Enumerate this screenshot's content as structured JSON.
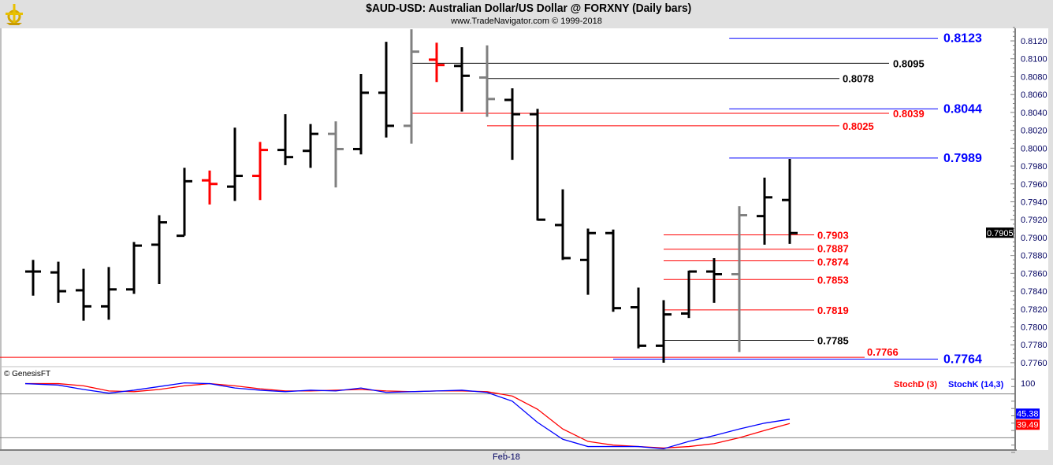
{
  "header": {
    "title": "$AUD-USD:  Australian Dollar/US Dollar @ FORXNY  (Daily bars)",
    "subtitle": "www.TradeNavigator.com © 1999-2018",
    "logo_icon": "golden-sextant-logo"
  },
  "chart_data": [
    {
      "type": "ohlc-bar",
      "symbol": "$AUD-USD",
      "ylim": [
        0.7748,
        0.8132
      ],
      "y_ticks": [
        "0.8120",
        "0.8100",
        "0.8080",
        "0.8060",
        "0.8040",
        "0.8020",
        "0.8000",
        "0.7980",
        "0.7960",
        "0.7940",
        "0.7920",
        "0.7900",
        "0.7880",
        "0.7860",
        "0.7840",
        "0.7820",
        "0.7800",
        "0.7780",
        "0.7760"
      ],
      "x_tick_label": "Feb-18",
      "x_tick_bar": 19,
      "last_price": "0.7905",
      "bar_colors": {
        "black": "#000000",
        "red": "#ff0000",
        "gray": "#808080"
      },
      "bars": [
        {
          "o": 0.7862,
          "h": 0.7875,
          "l": 0.7835,
          "c": 0.7862,
          "color": "black"
        },
        {
          "o": 0.7861,
          "h": 0.7873,
          "l": 0.7827,
          "c": 0.784,
          "color": "black"
        },
        {
          "o": 0.7841,
          "h": 0.7865,
          "l": 0.7807,
          "c": 0.7823,
          "color": "black"
        },
        {
          "o": 0.7823,
          "h": 0.7867,
          "l": 0.7808,
          "c": 0.7842,
          "color": "black"
        },
        {
          "o": 0.7842,
          "h": 0.7895,
          "l": 0.7837,
          "c": 0.7891,
          "color": "black"
        },
        {
          "o": 0.7892,
          "h": 0.7925,
          "l": 0.7848,
          "c": 0.7917,
          "color": "black"
        },
        {
          "o": 0.7902,
          "h": 0.7978,
          "l": 0.7902,
          "c": 0.7963,
          "color": "black"
        },
        {
          "o": 0.7964,
          "h": 0.7975,
          "l": 0.7937,
          "c": 0.796,
          "color": "red"
        },
        {
          "o": 0.7957,
          "h": 0.8023,
          "l": 0.7941,
          "c": 0.7969,
          "color": "black"
        },
        {
          "o": 0.7969,
          "h": 0.8007,
          "l": 0.7942,
          "c": 0.7998,
          "color": "red"
        },
        {
          "o": 0.7998,
          "h": 0.8038,
          "l": 0.7981,
          "c": 0.799,
          "color": "black"
        },
        {
          "o": 0.7997,
          "h": 0.8027,
          "l": 0.7978,
          "c": 0.8016,
          "color": "black"
        },
        {
          "o": 0.8016,
          "h": 0.803,
          "l": 0.7956,
          "c": 0.7999,
          "color": "gray"
        },
        {
          "o": 0.7999,
          "h": 0.8083,
          "l": 0.7993,
          "c": 0.8062,
          "color": "black"
        },
        {
          "o": 0.8062,
          "h": 0.8119,
          "l": 0.8012,
          "c": 0.8025,
          "color": "black"
        },
        {
          "o": 0.8025,
          "h": 0.8133,
          "l": 0.8005,
          "c": 0.8108,
          "color": "gray"
        },
        {
          "o": 0.8099,
          "h": 0.8118,
          "l": 0.8074,
          "c": 0.8093,
          "color": "red"
        },
        {
          "o": 0.8092,
          "h": 0.8113,
          "l": 0.8041,
          "c": 0.8081,
          "color": "black"
        },
        {
          "o": 0.8079,
          "h": 0.8115,
          "l": 0.8035,
          "c": 0.8055,
          "color": "gray"
        },
        {
          "o": 0.8054,
          "h": 0.8067,
          "l": 0.7987,
          "c": 0.8038,
          "color": "black"
        },
        {
          "o": 0.8038,
          "h": 0.8044,
          "l": 0.7919,
          "c": 0.792,
          "color": "black"
        },
        {
          "o": 0.7914,
          "h": 0.7954,
          "l": 0.7875,
          "c": 0.7877,
          "color": "black"
        },
        {
          "o": 0.7875,
          "h": 0.791,
          "l": 0.7836,
          "c": 0.7905,
          "color": "black"
        },
        {
          "o": 0.7905,
          "h": 0.7909,
          "l": 0.7817,
          "c": 0.7821,
          "color": "black"
        },
        {
          "o": 0.7822,
          "h": 0.7844,
          "l": 0.7776,
          "c": 0.7779,
          "color": "black"
        },
        {
          "o": 0.7779,
          "h": 0.783,
          "l": 0.776,
          "c": 0.7814,
          "color": "black"
        },
        {
          "o": 0.7815,
          "h": 0.7863,
          "l": 0.781,
          "c": 0.7862,
          "color": "black"
        },
        {
          "o": 0.7862,
          "h": 0.7877,
          "l": 0.7827,
          "c": 0.7859,
          "color": "black"
        },
        {
          "o": 0.7859,
          "h": 0.7935,
          "l": 0.7772,
          "c": 0.7925,
          "color": "gray"
        },
        {
          "o": 0.7924,
          "h": 0.7967,
          "l": 0.7892,
          "c": 0.7945,
          "color": "black"
        },
        {
          "o": 0.7942,
          "h": 0.7988,
          "l": 0.7893,
          "c": 0.7905,
          "color": "black"
        }
      ],
      "levels": [
        {
          "price": 0.8123,
          "label": "0.8123",
          "color": "#0000ff",
          "from_bar": 27.6
        },
        {
          "price": 0.8095,
          "label": "0.8095",
          "color": "#000000",
          "from_bar": 15
        },
        {
          "price": 0.8078,
          "label": "0.8078",
          "color": "#000000",
          "from_bar": 18
        },
        {
          "price": 0.8044,
          "label": "0.8044",
          "color": "#0000ff",
          "from_bar": 27.6
        },
        {
          "price": 0.8039,
          "label": "0.8039",
          "color": "#ff0000",
          "from_bar": 15
        },
        {
          "price": 0.8025,
          "label": "0.8025",
          "color": "#ff0000",
          "from_bar": 18
        },
        {
          "price": 0.7989,
          "label": "0.7989",
          "color": "#0000ff",
          "from_bar": 27.6
        },
        {
          "price": 0.7903,
          "label": "0.7903",
          "color": "#ff0000",
          "from_bar": 25
        },
        {
          "price": 0.7887,
          "label": "0.7887",
          "color": "#ff0000",
          "from_bar": 25
        },
        {
          "price": 0.7874,
          "label": "0.7874",
          "color": "#ff0000",
          "from_bar": 25
        },
        {
          "price": 0.7853,
          "label": "0.7853",
          "color": "#ff0000",
          "from_bar": 25
        },
        {
          "price": 0.7819,
          "label": "0.7819",
          "color": "#ff0000",
          "from_bar": 25
        },
        {
          "price": 0.7785,
          "label": "0.7785",
          "color": "#000000",
          "from_bar": 25
        },
        {
          "price": 0.7766,
          "label": "0.7766",
          "color": "#ff0000",
          "from_bar": -2
        },
        {
          "price": 0.7764,
          "label": "0.7764",
          "color": "#0000ff",
          "from_bar": 23
        }
      ]
    },
    {
      "type": "line",
      "copyright": "© GenesisFT",
      "ylim": [
        0,
        100
      ],
      "y_tick_label": "100",
      "reference_lines": [
        80,
        20
      ],
      "series": [
        {
          "name": "StochD (3)",
          "color": "#ff0000",
          "last_label": "39.49",
          "values": [
            94,
            94,
            91,
            84,
            83,
            86,
            91,
            94,
            91,
            87,
            84,
            84,
            85,
            86,
            84,
            83,
            84,
            84,
            83,
            77,
            59,
            32,
            15,
            10,
            8,
            6,
            8,
            12,
            20,
            30,
            39.49
          ]
        },
        {
          "name": "StochK (14,3)",
          "color": "#0000ff",
          "last_label": "45.38",
          "values": [
            94,
            92,
            86,
            81,
            85,
            90,
            95,
            94,
            88,
            85,
            83,
            85,
            84,
            88,
            82,
            83,
            84,
            85,
            82,
            70,
            41,
            18,
            8,
            8,
            8,
            5,
            15,
            23,
            32,
            40,
            45.38
          ]
        }
      ]
    }
  ]
}
